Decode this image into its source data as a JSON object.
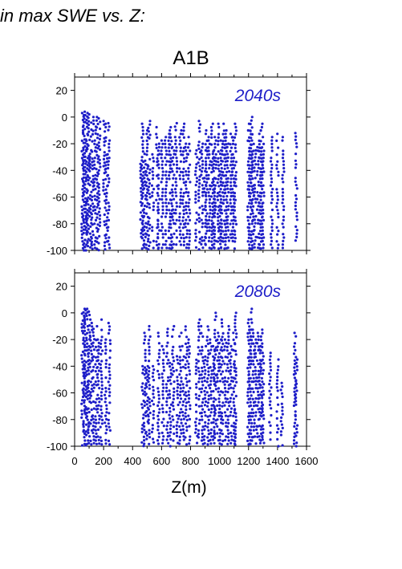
{
  "figure": {
    "heading": "in max SWE vs. Z:",
    "scenario": "A1B"
  },
  "chart_data": [
    {
      "type": "scatter",
      "panel_label": "2040s",
      "xlabel": "",
      "ylabel": "",
      "xlim": [
        0,
        1600
      ],
      "ylim": [
        -100,
        30
      ],
      "xticks": [],
      "yticks": [
        20,
        0,
        -20,
        -40,
        -60,
        -80,
        -100
      ],
      "point_color": "#1e1ec8",
      "label_color": "#1e1ec8",
      "columns": [
        {
          "z": 55,
          "top": 3
        },
        {
          "z": 65,
          "top": 4
        },
        {
          "z": 75,
          "top": 4
        },
        {
          "z": 85,
          "top": 3
        },
        {
          "z": 95,
          "top": 2
        },
        {
          "z": 110,
          "top": 1
        },
        {
          "z": 125,
          "top": 0
        },
        {
          "z": 140,
          "top": -2
        },
        {
          "z": 155,
          "top": 0
        },
        {
          "z": 170,
          "top": -1
        },
        {
          "z": 205,
          "top": -3
        },
        {
          "z": 220,
          "top": -5
        },
        {
          "z": 235,
          "top": -2
        },
        {
          "z": 460,
          "top": -30
        },
        {
          "z": 470,
          "top": -5
        },
        {
          "z": 485,
          "top": -25
        },
        {
          "z": 500,
          "top": -10
        },
        {
          "z": 515,
          "top": -3
        },
        {
          "z": 540,
          "top": -28
        },
        {
          "z": 570,
          "top": -5
        },
        {
          "z": 580,
          "top": -20
        },
        {
          "z": 605,
          "top": -15
        },
        {
          "z": 630,
          "top": -15
        },
        {
          "z": 655,
          "top": -10
        },
        {
          "z": 665,
          "top": -5
        },
        {
          "z": 680,
          "top": -20
        },
        {
          "z": 700,
          "top": -2
        },
        {
          "z": 730,
          "top": -10
        },
        {
          "z": 750,
          "top": -5
        },
        {
          "z": 770,
          "top": -20
        },
        {
          "z": 790,
          "top": -15
        },
        {
          "z": 840,
          "top": -25
        },
        {
          "z": 860,
          "top": -3
        },
        {
          "z": 880,
          "top": -20
        },
        {
          "z": 900,
          "top": -25
        },
        {
          "z": 910,
          "top": -10
        },
        {
          "z": 930,
          "top": -15
        },
        {
          "z": 950,
          "top": -5
        },
        {
          "z": 960,
          "top": -25
        },
        {
          "z": 970,
          "top": -15
        },
        {
          "z": 990,
          "top": -5
        },
        {
          "z": 1005,
          "top": -25
        },
        {
          "z": 1015,
          "top": -15
        },
        {
          "z": 1030,
          "top": -5
        },
        {
          "z": 1045,
          "top": -10
        },
        {
          "z": 1060,
          "top": -20
        },
        {
          "z": 1080,
          "top": -10
        },
        {
          "z": 1095,
          "top": -15
        },
        {
          "z": 1110,
          "top": -5
        },
        {
          "z": 1200,
          "top": -10
        },
        {
          "z": 1210,
          "top": -5
        },
        {
          "z": 1220,
          "top": 0
        },
        {
          "z": 1230,
          "top": -15
        },
        {
          "z": 1245,
          "top": -25
        },
        {
          "z": 1265,
          "top": -20
        },
        {
          "z": 1280,
          "top": -10
        },
        {
          "z": 1290,
          "top": -5
        },
        {
          "z": 1300,
          "top": -15
        },
        {
          "z": 1360,
          "top": -15
        },
        {
          "z": 1400,
          "top": -10
        },
        {
          "z": 1440,
          "top": -15
        },
        {
          "z": 1530,
          "top": -12
        }
      ]
    },
    {
      "type": "scatter",
      "panel_label": "2080s",
      "xlabel": "Z(m)",
      "ylabel": "",
      "xlim": [
        0,
        1600
      ],
      "ylim": [
        -100,
        30
      ],
      "xticks": [
        0,
        200,
        400,
        600,
        800,
        1000,
        1200,
        1400,
        1600
      ],
      "yticks": [
        20,
        0,
        -20,
        -40,
        -60,
        -80,
        -100
      ],
      "point_color": "#1e1ec8",
      "label_color": "#1e1ec8",
      "columns": [
        {
          "z": 55,
          "top": 2
        },
        {
          "z": 65,
          "top": 3
        },
        {
          "z": 75,
          "top": 2
        },
        {
          "z": 90,
          "top": 3
        },
        {
          "z": 100,
          "top": 1
        },
        {
          "z": 115,
          "top": -5
        },
        {
          "z": 130,
          "top": -12
        },
        {
          "z": 150,
          "top": -10
        },
        {
          "z": 165,
          "top": -20
        },
        {
          "z": 185,
          "top": -5
        },
        {
          "z": 215,
          "top": -20
        },
        {
          "z": 240,
          "top": -5
        },
        {
          "z": 470,
          "top": -40
        },
        {
          "z": 485,
          "top": -15
        },
        {
          "z": 500,
          "top": -40
        },
        {
          "z": 515,
          "top": -10
        },
        {
          "z": 540,
          "top": -40
        },
        {
          "z": 580,
          "top": -15
        },
        {
          "z": 610,
          "top": -25
        },
        {
          "z": 640,
          "top": -12
        },
        {
          "z": 660,
          "top": -35
        },
        {
          "z": 680,
          "top": -10
        },
        {
          "z": 710,
          "top": -30
        },
        {
          "z": 730,
          "top": -15
        },
        {
          "z": 750,
          "top": -25
        },
        {
          "z": 770,
          "top": -5
        },
        {
          "z": 790,
          "top": -20
        },
        {
          "z": 840,
          "top": -30
        },
        {
          "z": 860,
          "top": -5
        },
        {
          "z": 880,
          "top": -10
        },
        {
          "z": 900,
          "top": -25
        },
        {
          "z": 920,
          "top": -5
        },
        {
          "z": 940,
          "top": -20
        },
        {
          "z": 960,
          "top": -25
        },
        {
          "z": 970,
          "top": 0
        },
        {
          "z": 990,
          "top": -15
        },
        {
          "z": 1005,
          "top": -20
        },
        {
          "z": 1020,
          "top": -5
        },
        {
          "z": 1040,
          "top": -20
        },
        {
          "z": 1060,
          "top": -10
        },
        {
          "z": 1080,
          "top": -25
        },
        {
          "z": 1100,
          "top": -15
        },
        {
          "z": 1110,
          "top": 0
        },
        {
          "z": 1200,
          "top": -5
        },
        {
          "z": 1210,
          "top": -15
        },
        {
          "z": 1220,
          "top": 3
        },
        {
          "z": 1235,
          "top": -10
        },
        {
          "z": 1250,
          "top": -20
        },
        {
          "z": 1265,
          "top": -15
        },
        {
          "z": 1280,
          "top": -25
        },
        {
          "z": 1290,
          "top": -10
        },
        {
          "z": 1300,
          "top": -30
        },
        {
          "z": 1350,
          "top": -30
        },
        {
          "z": 1400,
          "top": -35
        },
        {
          "z": 1430,
          "top": -50
        },
        {
          "z": 1520,
          "top": -15
        },
        {
          "z": 1530,
          "top": -35
        }
      ]
    }
  ]
}
